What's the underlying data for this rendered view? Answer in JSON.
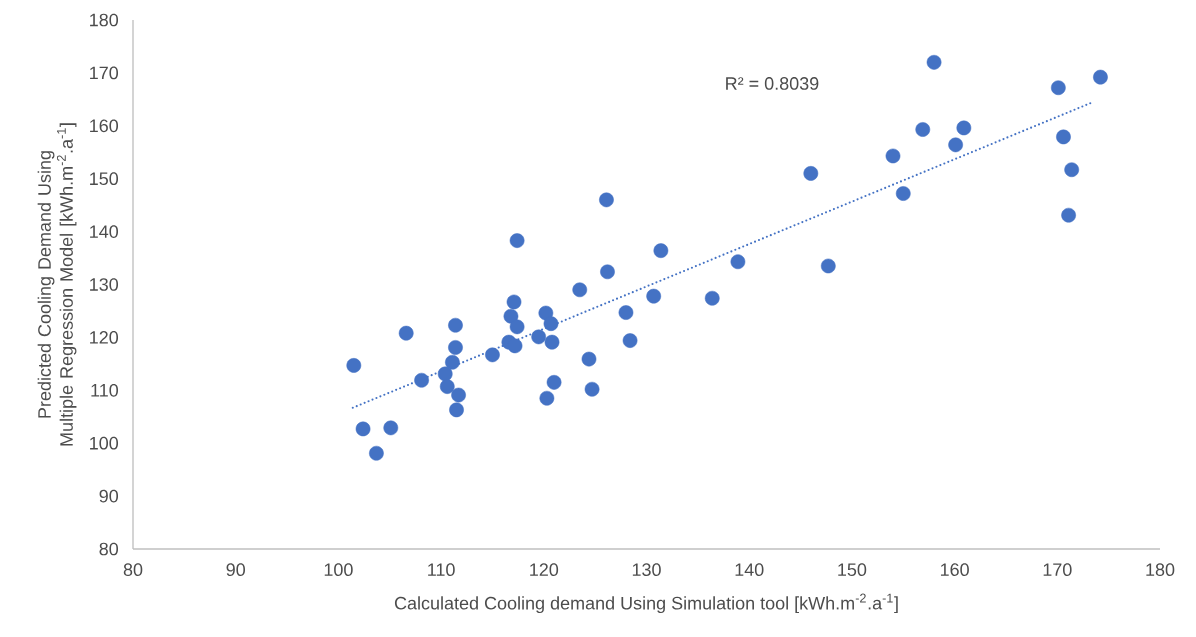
{
  "chart_data": {
    "type": "scatter",
    "xlabel": "Calculated Cooling demand Using Simulation tool [kWh.m$^{-2}$.a$^{-1}$]",
    "ylabel": "Predicted Cooling Demand Using Multiple Regression Model [kWh.m$^{-2}$.a$^{-1}$]",
    "annotations": [
      "R² = 0.8039"
    ],
    "xlim": [
      80,
      180
    ],
    "ylim": [
      80,
      180
    ],
    "xticks": [
      80,
      90,
      100,
      110,
      120,
      130,
      140,
      150,
      160,
      170,
      180
    ],
    "yticks": [
      80,
      90,
      100,
      110,
      120,
      130,
      140,
      150,
      160,
      170,
      180
    ],
    "grid": false,
    "legend": false,
    "marker": "circle",
    "series": [
      {
        "color": "#4472c4",
        "x": [
          117.4,
          131.4,
          106.6,
          101.5,
          111.4,
          111.4,
          111.1,
          110.4,
          110.6,
          111.7,
          111.5,
          108.1,
          102.4,
          105.1,
          103.7,
          115.0,
          117.1,
          116.8,
          117.4,
          116.6,
          117.2,
          120.2,
          120.7,
          119.5,
          120.8,
          121.0,
          120.3,
          124.4,
          124.7,
          123.5,
          126.2,
          128.0,
          128.4,
          130.7,
          126.1,
          138.9,
          136.4,
          147.7,
          146.0,
          158.0,
          170.1,
          174.2,
          156.9,
          160.9,
          160.1,
          154.0,
          155.0,
          170.6,
          171.4,
          171.1
        ],
        "values": [
          138.3,
          136.4,
          120.8,
          114.7,
          122.3,
          118.1,
          115.3,
          113.1,
          110.7,
          109.1,
          106.3,
          111.9,
          102.7,
          102.9,
          98.1,
          116.7,
          126.7,
          124.0,
          122.0,
          119.1,
          118.4,
          124.6,
          122.6,
          120.1,
          119.1,
          111.5,
          108.5,
          115.9,
          110.2,
          129.0,
          132.4,
          124.7,
          119.4,
          127.8,
          146.0,
          134.3,
          127.4,
          133.5,
          151.0,
          172.0,
          167.2,
          169.2,
          159.3,
          159.6,
          156.4,
          154.3,
          147.2,
          157.9,
          151.7,
          143.1
        ]
      },
      {
        "type": "line",
        "color": "#4472c4",
        "line_style": "dotted",
        "marker": "none",
        "x": [
          101.4,
          173.5
        ],
        "values": [
          106.7,
          164.5
        ]
      }
    ]
  }
}
